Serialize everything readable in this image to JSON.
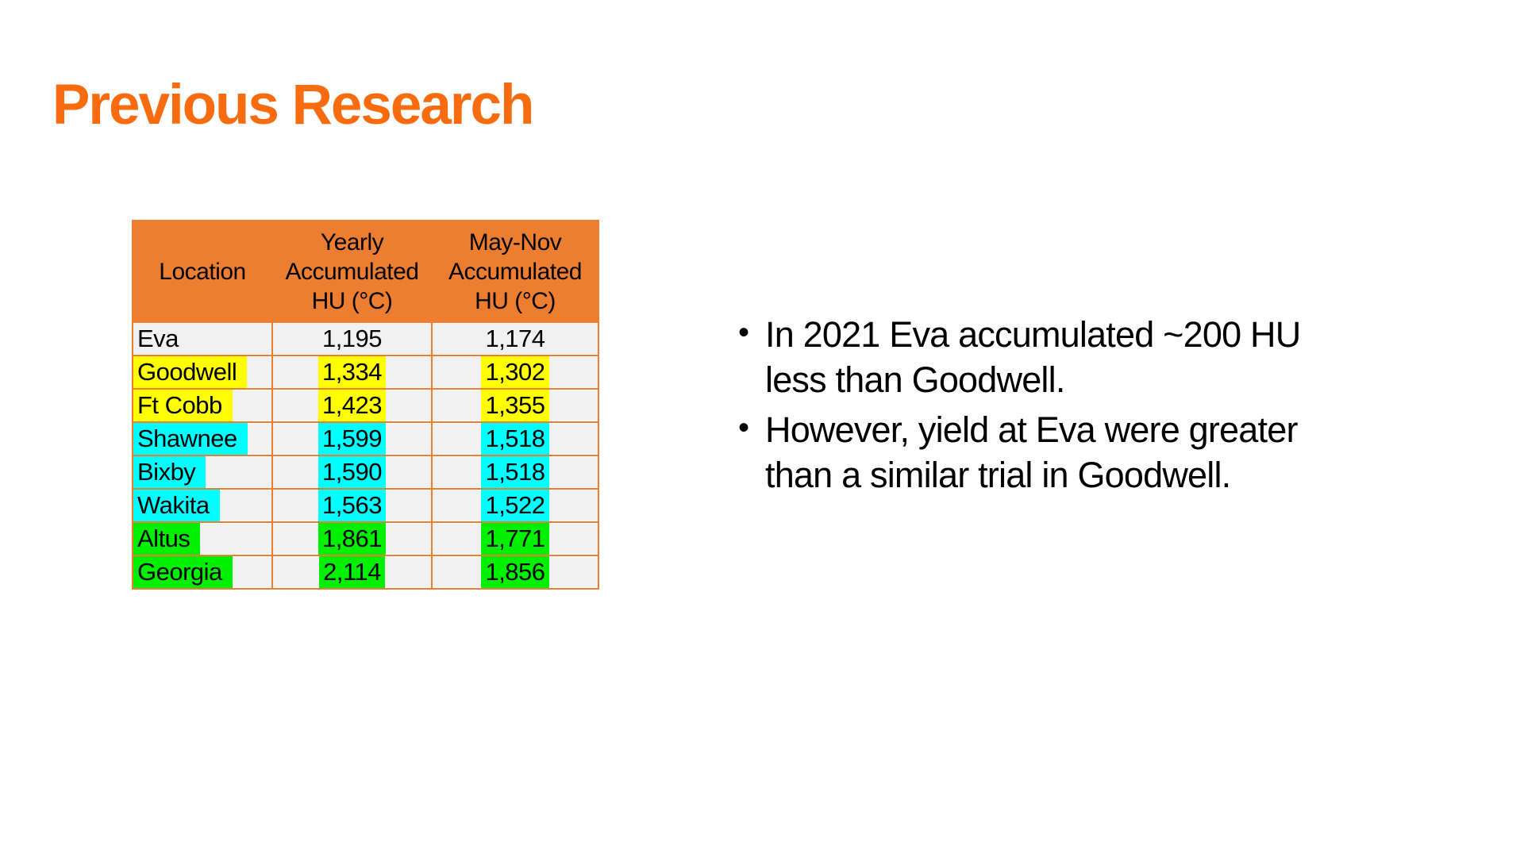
{
  "slide": {
    "title": "Previous Research"
  },
  "colors": {
    "title_orange": "#F86B0E",
    "table_header_bg": "#ED7D31",
    "table_border": "#ED7D31",
    "row_bg": "#F1F1F1",
    "text": "#000000"
  },
  "table": {
    "headers": {
      "location": "Location",
      "yearly": "Yearly\nAccumulated\nHU (°C)",
      "may_nov": "May-Nov\nAccumulated\nHU (°C)"
    },
    "highlight_colors": {
      "none": "transparent",
      "yellow": "#FFFF00",
      "cyan": "#00FFFF",
      "green": "#00F000"
    },
    "rows": [
      {
        "location": "Eva",
        "yearly": "1,195",
        "may_nov": "1,174",
        "highlight": "none"
      },
      {
        "location": "Goodwell",
        "yearly": "1,334",
        "may_nov": "1,302",
        "highlight": "yellow"
      },
      {
        "location": "Ft Cobb",
        "yearly": "1,423",
        "may_nov": "1,355",
        "highlight": "yellow"
      },
      {
        "location": "Shawnee",
        "yearly": "1,599",
        "may_nov": "1,518",
        "highlight": "cyan"
      },
      {
        "location": "Bixby",
        "yearly": "1,590",
        "may_nov": "1,518",
        "highlight": "cyan"
      },
      {
        "location": "Wakita",
        "yearly": "1,563",
        "may_nov": "1,522",
        "highlight": "cyan"
      },
      {
        "location": "Altus",
        "yearly": "1,861",
        "may_nov": "1,771",
        "highlight": "green"
      },
      {
        "location": "Georgia",
        "yearly": "2,114",
        "may_nov": "1,856",
        "highlight": "green"
      }
    ]
  },
  "bullets": {
    "marker": "•",
    "items": [
      {
        "text": "In 2021 Eva accumulated ~200 HU\nless than Goodwell."
      },
      {
        "text": "However, yield at Eva were greater\nthan a similar trial in Goodwell."
      }
    ]
  }
}
